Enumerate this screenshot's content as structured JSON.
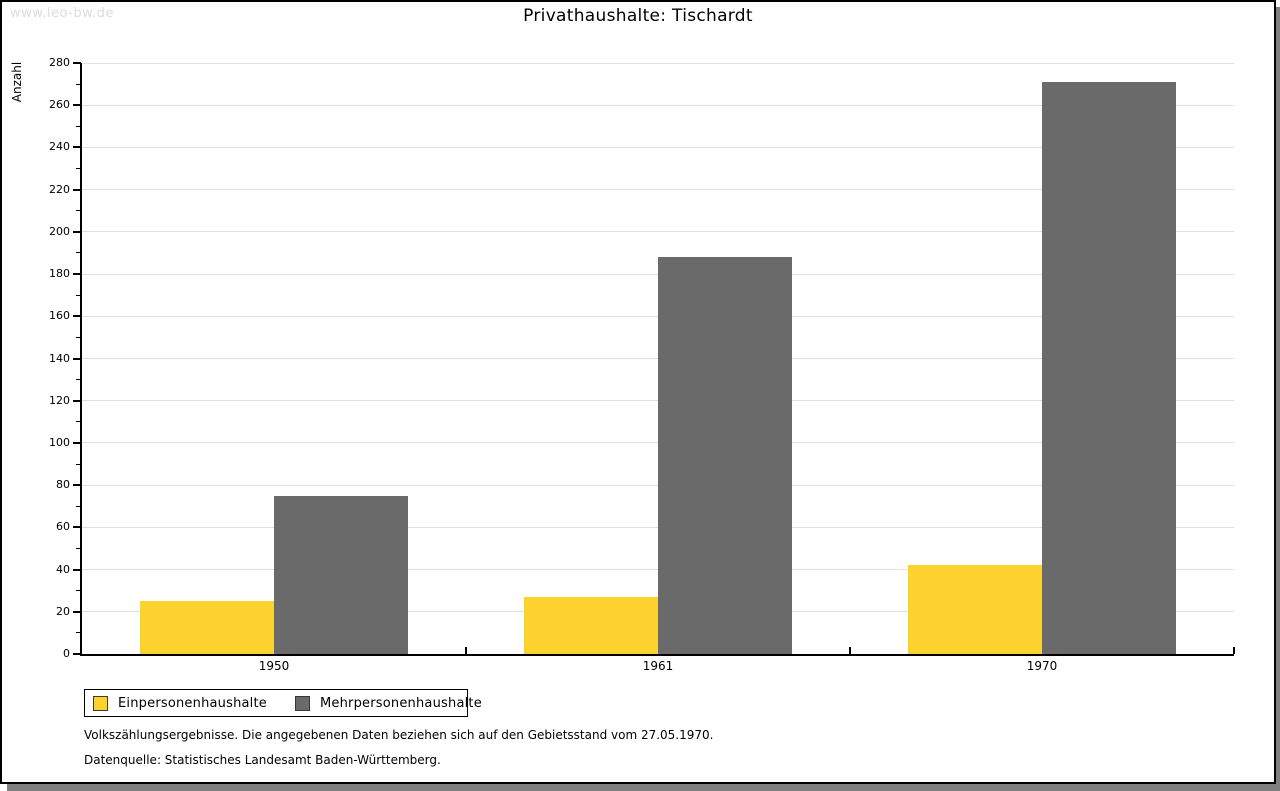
{
  "watermark": "www.leo-bw.de",
  "chart_data": {
    "type": "bar",
    "title": "Privathaushalte: Tischardt",
    "xlabel": "",
    "ylabel": "Anzahl",
    "ylim": [
      0,
      280
    ],
    "ytick_major_step": 20,
    "ytick_minor_step": 10,
    "grid": true,
    "legend_position": "bottom-left",
    "categories": [
      "1950",
      "1961",
      "1970"
    ],
    "series": [
      {
        "name": "Einpersonenhaushalte",
        "color": "#fcd32e",
        "values": [
          25,
          27,
          42
        ]
      },
      {
        "name": "Mehrpersonenhaushalte",
        "color": "#6a6a6a",
        "values": [
          75,
          188,
          271
        ]
      }
    ]
  },
  "footnotes": {
    "line1": "Volkszählungsergebnisse. Die angegebenen Daten beziehen sich auf den Gebietsstand vom 27.05.1970.",
    "line2": "Datenquelle: Statistisches Landesamt Baden-Württemberg."
  },
  "colors": {
    "axis": "#000000",
    "grid": "#e0e0e0",
    "shadow": "#7f7f7f",
    "watermark": "#dcdcdc"
  }
}
